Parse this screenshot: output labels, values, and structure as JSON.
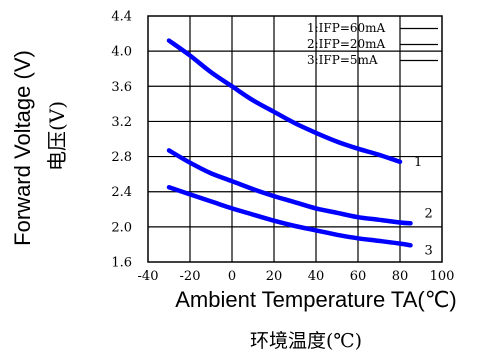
{
  "chart_data": {
    "type": "line",
    "xlabel": "Ambient Temperature TA(℃)",
    "xlabel_cn": "环境温度(℃)",
    "ylabel": "Forward Voltage (V)",
    "ylabel_cn": "电压(V)",
    "xlim": [
      -40,
      100
    ],
    "ylim": [
      1.6,
      4.4
    ],
    "x_ticks": [
      -40,
      -20,
      0,
      20,
      40,
      60,
      80,
      100
    ],
    "x_tick_labels": [
      "-40",
      "-20",
      "0",
      "20",
      "40",
      "60",
      "80",
      "100"
    ],
    "y_ticks": [
      1.6,
      2.0,
      2.4,
      2.8,
      3.2,
      3.6,
      4.0,
      4.4
    ],
    "y_tick_labels": [
      "1.6",
      "2.0",
      "2.4",
      "2.8",
      "3.2",
      "3.6",
      "4.0",
      "4.4"
    ],
    "grid": true,
    "legend_placement": "top-right",
    "series": [
      {
        "name": "1:IFP=60mA",
        "end_label": "1",
        "x": [
          -30,
          -20,
          -10,
          0,
          10,
          20,
          30,
          40,
          50,
          60,
          70,
          80
        ],
        "values": [
          4.12,
          3.95,
          3.76,
          3.6,
          3.44,
          3.31,
          3.18,
          3.07,
          2.97,
          2.89,
          2.82,
          2.74
        ]
      },
      {
        "name": "2:IFP=20mA",
        "end_label": "2",
        "x": [
          -30,
          -20,
          -10,
          0,
          10,
          20,
          30,
          40,
          50,
          60,
          70,
          80,
          85
        ],
        "values": [
          2.87,
          2.73,
          2.61,
          2.52,
          2.43,
          2.35,
          2.28,
          2.21,
          2.16,
          2.11,
          2.08,
          2.05,
          2.04
        ]
      },
      {
        "name": "3:IFP=5mA",
        "end_label": "3",
        "x": [
          -30,
          -20,
          -10,
          0,
          10,
          20,
          30,
          40,
          50,
          60,
          70,
          80,
          85
        ],
        "values": [
          2.45,
          2.37,
          2.29,
          2.21,
          2.14,
          2.07,
          2.01,
          1.96,
          1.91,
          1.87,
          1.84,
          1.81,
          1.79
        ]
      }
    ],
    "line_color": "#0000ff"
  }
}
